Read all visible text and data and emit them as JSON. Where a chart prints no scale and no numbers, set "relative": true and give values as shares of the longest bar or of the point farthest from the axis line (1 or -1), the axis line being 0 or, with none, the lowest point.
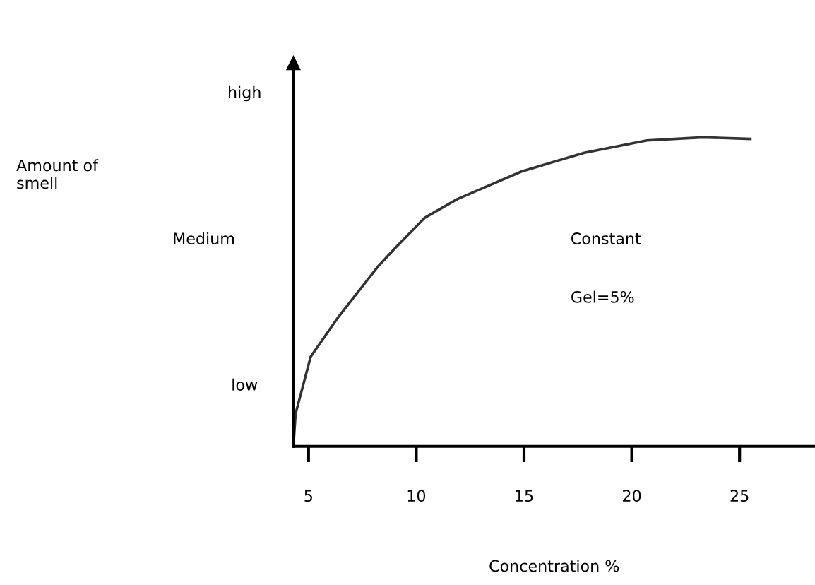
{
  "chart_data": {
    "type": "line",
    "relative": true,
    "xlabel": "Concentration %",
    "x": [
      4.3,
      4.4,
      5.1,
      6.4,
      8.2,
      9.0,
      10.4,
      11.9,
      14.9,
      17.8,
      20.7,
      23.3,
      25.5
    ],
    "series": [
      {
        "color": "#333333",
        "values": [
          0,
          0.105,
          0.29,
          0.42,
          0.58,
          0.64,
          0.74,
          0.8,
          0.89,
          0.95,
          0.99,
          1.0,
          0.995
        ]
      }
    ],
    "xlim": [
      4.3,
      28.5
    ],
    "xticks": [
      5,
      10,
      15,
      20,
      25
    ],
    "annotations": [
      "Amount of\nsmell",
      "high",
      "Medium",
      "low",
      "Constant",
      "Gel=5%"
    ],
    "grid": false,
    "legend": false,
    "marker": "none",
    "line_style": "solid"
  }
}
